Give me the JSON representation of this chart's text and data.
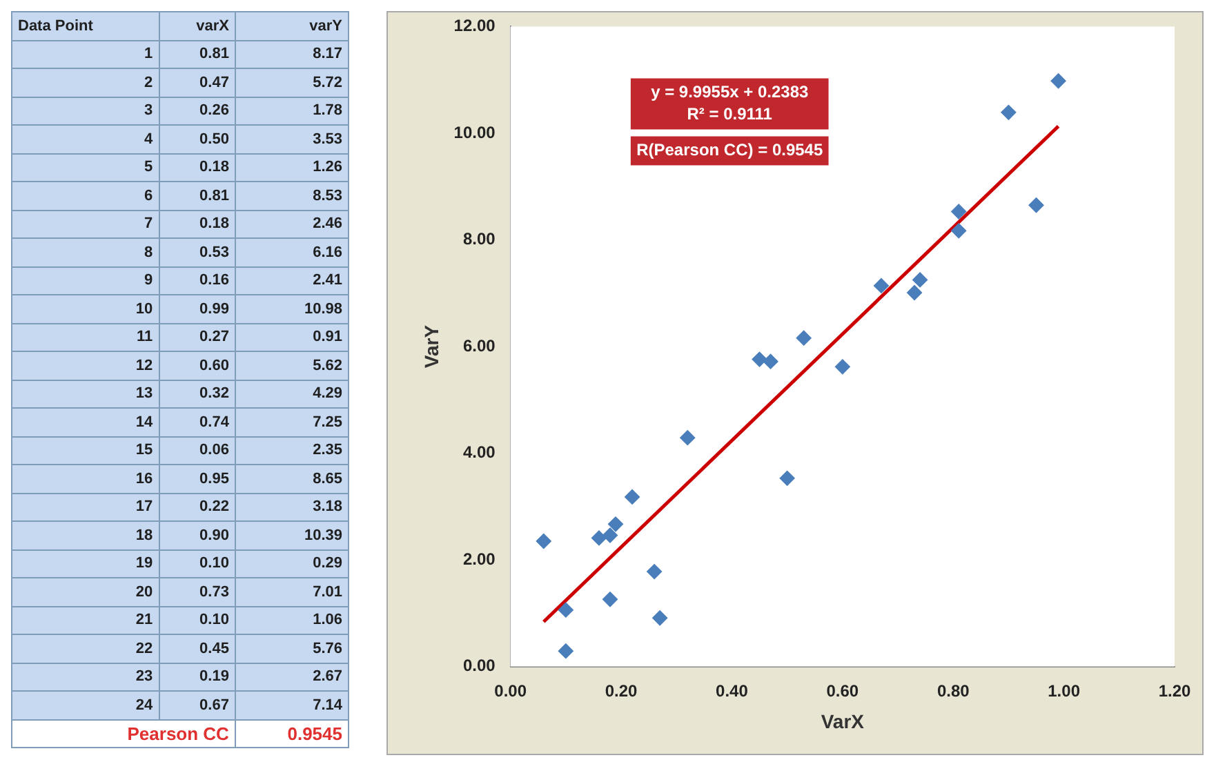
{
  "chart_data": [
    {
      "type": "heatmap",
      "ylabel": "Data Point",
      "categories": [
        "varX",
        "varY"
      ],
      "y_categories": [
        "1",
        "2",
        "3",
        "4",
        "5",
        "6",
        "7",
        "8",
        "9",
        "10",
        "11",
        "12",
        "13",
        "14",
        "15",
        "16",
        "17",
        "18",
        "19",
        "20",
        "21",
        "22",
        "23",
        "24"
      ],
      "cells": [
        [
          0.81,
          8.17
        ],
        [
          0.47,
          5.72
        ],
        [
          0.26,
          1.78
        ],
        [
          0.5,
          3.53
        ],
        [
          0.18,
          1.26
        ],
        [
          0.81,
          8.53
        ],
        [
          0.18,
          2.46
        ],
        [
          0.53,
          6.16
        ],
        [
          0.16,
          2.41
        ],
        [
          0.99,
          10.98
        ],
        [
          0.27,
          0.91
        ],
        [
          0.6,
          5.62
        ],
        [
          0.32,
          4.29
        ],
        [
          0.74,
          7.25
        ],
        [
          0.06,
          2.35
        ],
        [
          0.95,
          8.65
        ],
        [
          0.22,
          3.18
        ],
        [
          0.9,
          10.39
        ],
        [
          0.1,
          0.29
        ],
        [
          0.73,
          7.01
        ],
        [
          0.1,
          1.06
        ],
        [
          0.45,
          5.76
        ],
        [
          0.19,
          2.67
        ],
        [
          0.67,
          7.14
        ]
      ],
      "cell_labels": [
        [
          "0.81",
          "8.17"
        ],
        [
          "0.47",
          "5.72"
        ],
        [
          "0.26",
          "1.78"
        ],
        [
          "0.50",
          "3.53"
        ],
        [
          "0.18",
          "1.26"
        ],
        [
          "0.81",
          "8.53"
        ],
        [
          "0.18",
          "2.46"
        ],
        [
          "0.53",
          "6.16"
        ],
        [
          "0.16",
          "2.41"
        ],
        [
          "0.99",
          "10.98"
        ],
        [
          "0.27",
          "0.91"
        ],
        [
          "0.60",
          "5.62"
        ],
        [
          "0.32",
          "4.29"
        ],
        [
          "0.74",
          "7.25"
        ],
        [
          "0.06",
          "2.35"
        ],
        [
          "0.95",
          "8.65"
        ],
        [
          "0.22",
          "3.18"
        ],
        [
          "0.90",
          "10.39"
        ],
        [
          "0.10",
          "0.29"
        ],
        [
          "0.73",
          "7.01"
        ],
        [
          "0.10",
          "1.06"
        ],
        [
          "0.45",
          "5.76"
        ],
        [
          "0.19",
          "2.67"
        ],
        [
          "0.67",
          "7.14"
        ]
      ],
      "color": "#c6d9f1",
      "annotations": [
        "Pearson CC",
        "0.9545"
      ]
    },
    {
      "type": "scatter",
      "xlabel": "VarX",
      "ylabel": "VarY",
      "xlim": [
        0,
        1.2
      ],
      "ylim": [
        0,
        12
      ],
      "xticks": [
        {
          "value": 0,
          "label": "0.00"
        },
        {
          "value": 0.2,
          "label": "0.20"
        },
        {
          "value": 0.4,
          "label": "0.40"
        },
        {
          "value": 0.6,
          "label": "0.60"
        },
        {
          "value": 0.8,
          "label": "0.80"
        },
        {
          "value": 1,
          "label": "1.00"
        },
        {
          "value": 1.2,
          "label": "1.20"
        }
      ],
      "yticks": [
        {
          "value": 0,
          "label": "0.00"
        },
        {
          "value": 2,
          "label": "2.00"
        },
        {
          "value": 4,
          "label": "4.00"
        },
        {
          "value": 6,
          "label": "6.00"
        },
        {
          "value": 8,
          "label": "8.00"
        },
        {
          "value": 10,
          "label": "10.00"
        },
        {
          "value": 12,
          "label": "12.00"
        }
      ],
      "grid": false,
      "series": [
        {
          "type": "scatter",
          "color": "#4a7ebb",
          "marker": "diamond",
          "x": [
            0.81,
            0.47,
            0.26,
            0.5,
            0.18,
            0.81,
            0.18,
            0.53,
            0.16,
            0.99,
            0.27,
            0.6,
            0.32,
            0.74,
            0.06,
            0.95,
            0.22,
            0.9,
            0.1,
            0.73,
            0.1,
            0.45,
            0.19,
            0.67
          ],
          "values": [
            8.17,
            5.72,
            1.78,
            3.53,
            1.26,
            8.53,
            2.46,
            6.16,
            2.41,
            10.98,
            0.91,
            5.62,
            4.29,
            7.25,
            2.35,
            8.65,
            3.18,
            10.39,
            0.29,
            7.01,
            1.06,
            5.76,
            2.67,
            7.14
          ]
        },
        {
          "type": "line",
          "color": "#cc0000",
          "marker": "none",
          "x": [
            0.06,
            0.99
          ],
          "values": [
            0.84,
            10.13
          ]
        }
      ],
      "annotations": [
        "y = 9.9955x + 0.2383",
        "R² = 0.9111",
        "R(Pearson CC) = 0.9545"
      ]
    }
  ]
}
